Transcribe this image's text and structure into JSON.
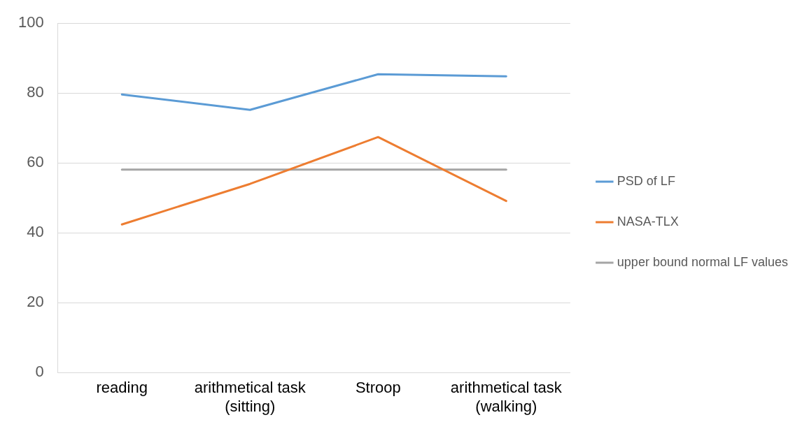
{
  "chart_data": {
    "type": "line",
    "categories": [
      "reading",
      "arithmetical task (sitting)",
      "Stroop",
      "arithmetical task (walking)"
    ],
    "series": [
      {
        "name": "PSD of LF",
        "color": "#5b9bd5",
        "values": [
          79.6,
          75.2,
          85.4,
          84.8
        ]
      },
      {
        "name": "NASA-TLX",
        "color": "#ed7d31",
        "values": [
          42.4,
          54.0,
          67.4,
          49.1
        ]
      },
      {
        "name": "upper bound normal LF values",
        "color": "#a5a5a5",
        "values": [
          58.1,
          58.1,
          58.1,
          58.1
        ]
      }
    ],
    "ylim": [
      0,
      100
    ],
    "yticks": [
      0,
      20,
      40,
      60,
      80,
      100
    ],
    "grid": "y",
    "legend": "right",
    "marker": "none",
    "line_style": "solid"
  }
}
